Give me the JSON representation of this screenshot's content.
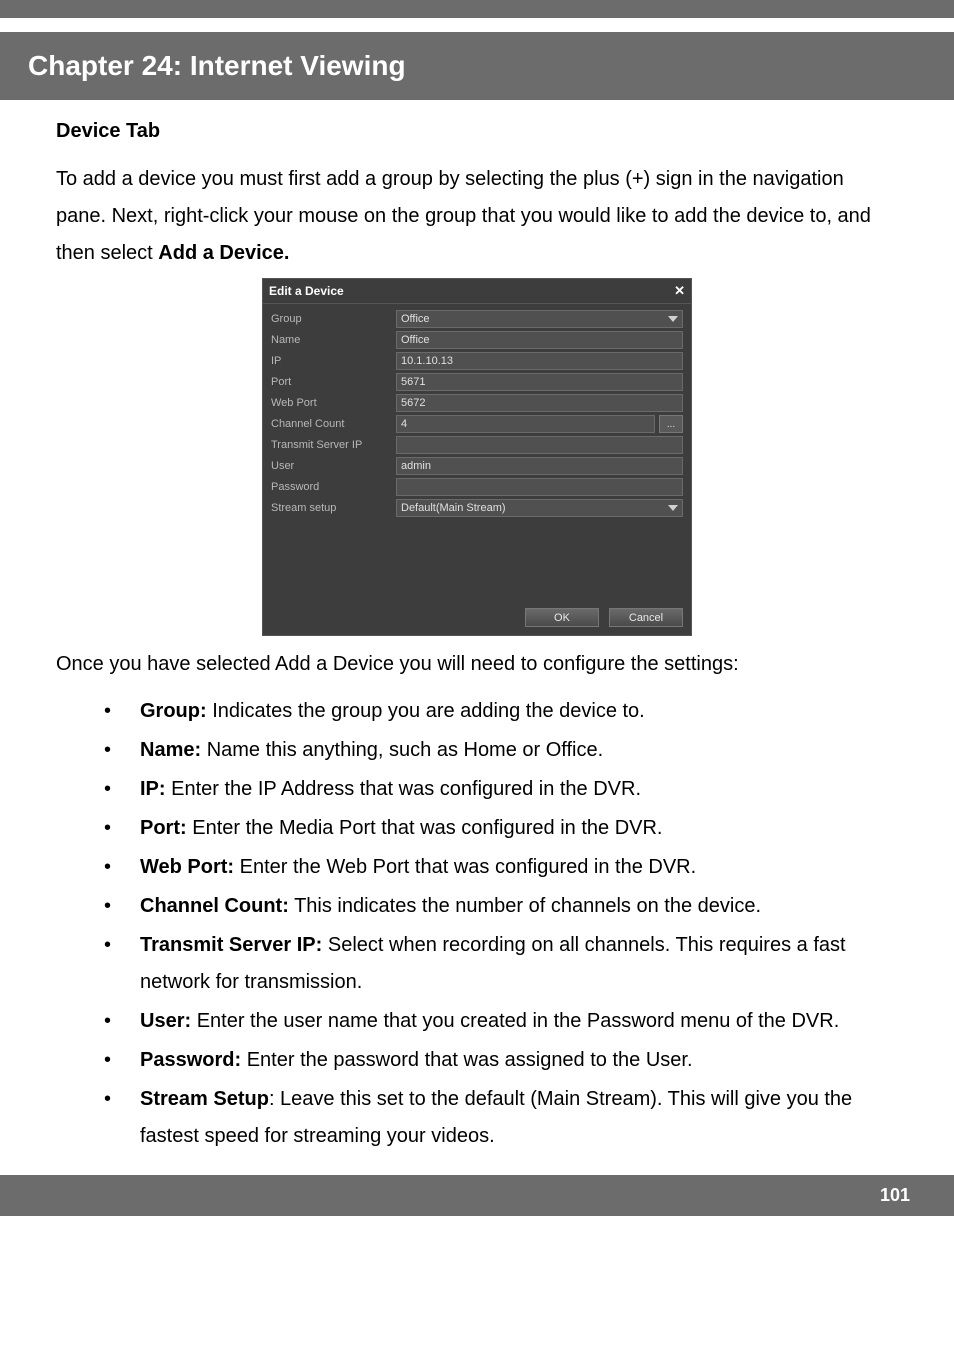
{
  "chapter_title": "Chapter 24: Internet Viewing",
  "section_title": "Device Tab",
  "intro_part1": "To add a device you must first add a group by selecting the plus (+) sign in the navigation pane. Next, right-click your mouse on the group that you would like to add the device to, and then select ",
  "intro_bold": "Add a Device.",
  "dialog": {
    "title": "Edit a Device",
    "close": "✕",
    "rows": {
      "group": {
        "label": "Group",
        "value": "Office"
      },
      "name": {
        "label": "Name",
        "value": "Office"
      },
      "ip": {
        "label": "IP",
        "value": "10.1.10.13"
      },
      "port": {
        "label": "Port",
        "value": "5671"
      },
      "webport": {
        "label": "Web Port",
        "value": "5672"
      },
      "chcount": {
        "label": "Channel Count",
        "value": "4"
      },
      "tserver": {
        "label": "Transmit Server IP",
        "value": ""
      },
      "user": {
        "label": "User",
        "value": "admin"
      },
      "password": {
        "label": "Password",
        "value": ""
      },
      "stream": {
        "label": "Stream setup",
        "value": "Default(Main Stream)"
      }
    },
    "ellipsis": "...",
    "ok": "OK",
    "cancel": "Cancel"
  },
  "after_dialog": "Once you have selected Add a Device you will need to configure the settings:",
  "bullets": [
    {
      "bold": "Group:",
      "text": " Indicates the group you are adding the device to."
    },
    {
      "bold": "Name:",
      "text": " Name this anything, such as Home or Office."
    },
    {
      "bold": "IP:",
      "text": " Enter the IP Address that was configured in the DVR."
    },
    {
      "bold": "Port:",
      "text": " Enter the Media Port that was configured in the DVR."
    },
    {
      "bold": "Web Port:",
      "text": " Enter the Web Port that was configured in the DVR."
    },
    {
      "bold": "Channel Count:",
      "text": " This indicates the number of channels on the device."
    },
    {
      "bold": "Transmit Server IP:",
      "text": " Select when recording on all channels. This requires a fast network for transmission."
    },
    {
      "bold": "User:",
      "text": " Enter the user name that you created in the Password menu of the DVR."
    },
    {
      "bold": "Password:",
      "text": " Enter the password that was assigned to the User."
    },
    {
      "bold": "Stream Setup",
      "text": ": Leave this set to the default (Main Stream). This will give you the fastest speed for streaming your videos."
    }
  ],
  "page_number": "101"
}
